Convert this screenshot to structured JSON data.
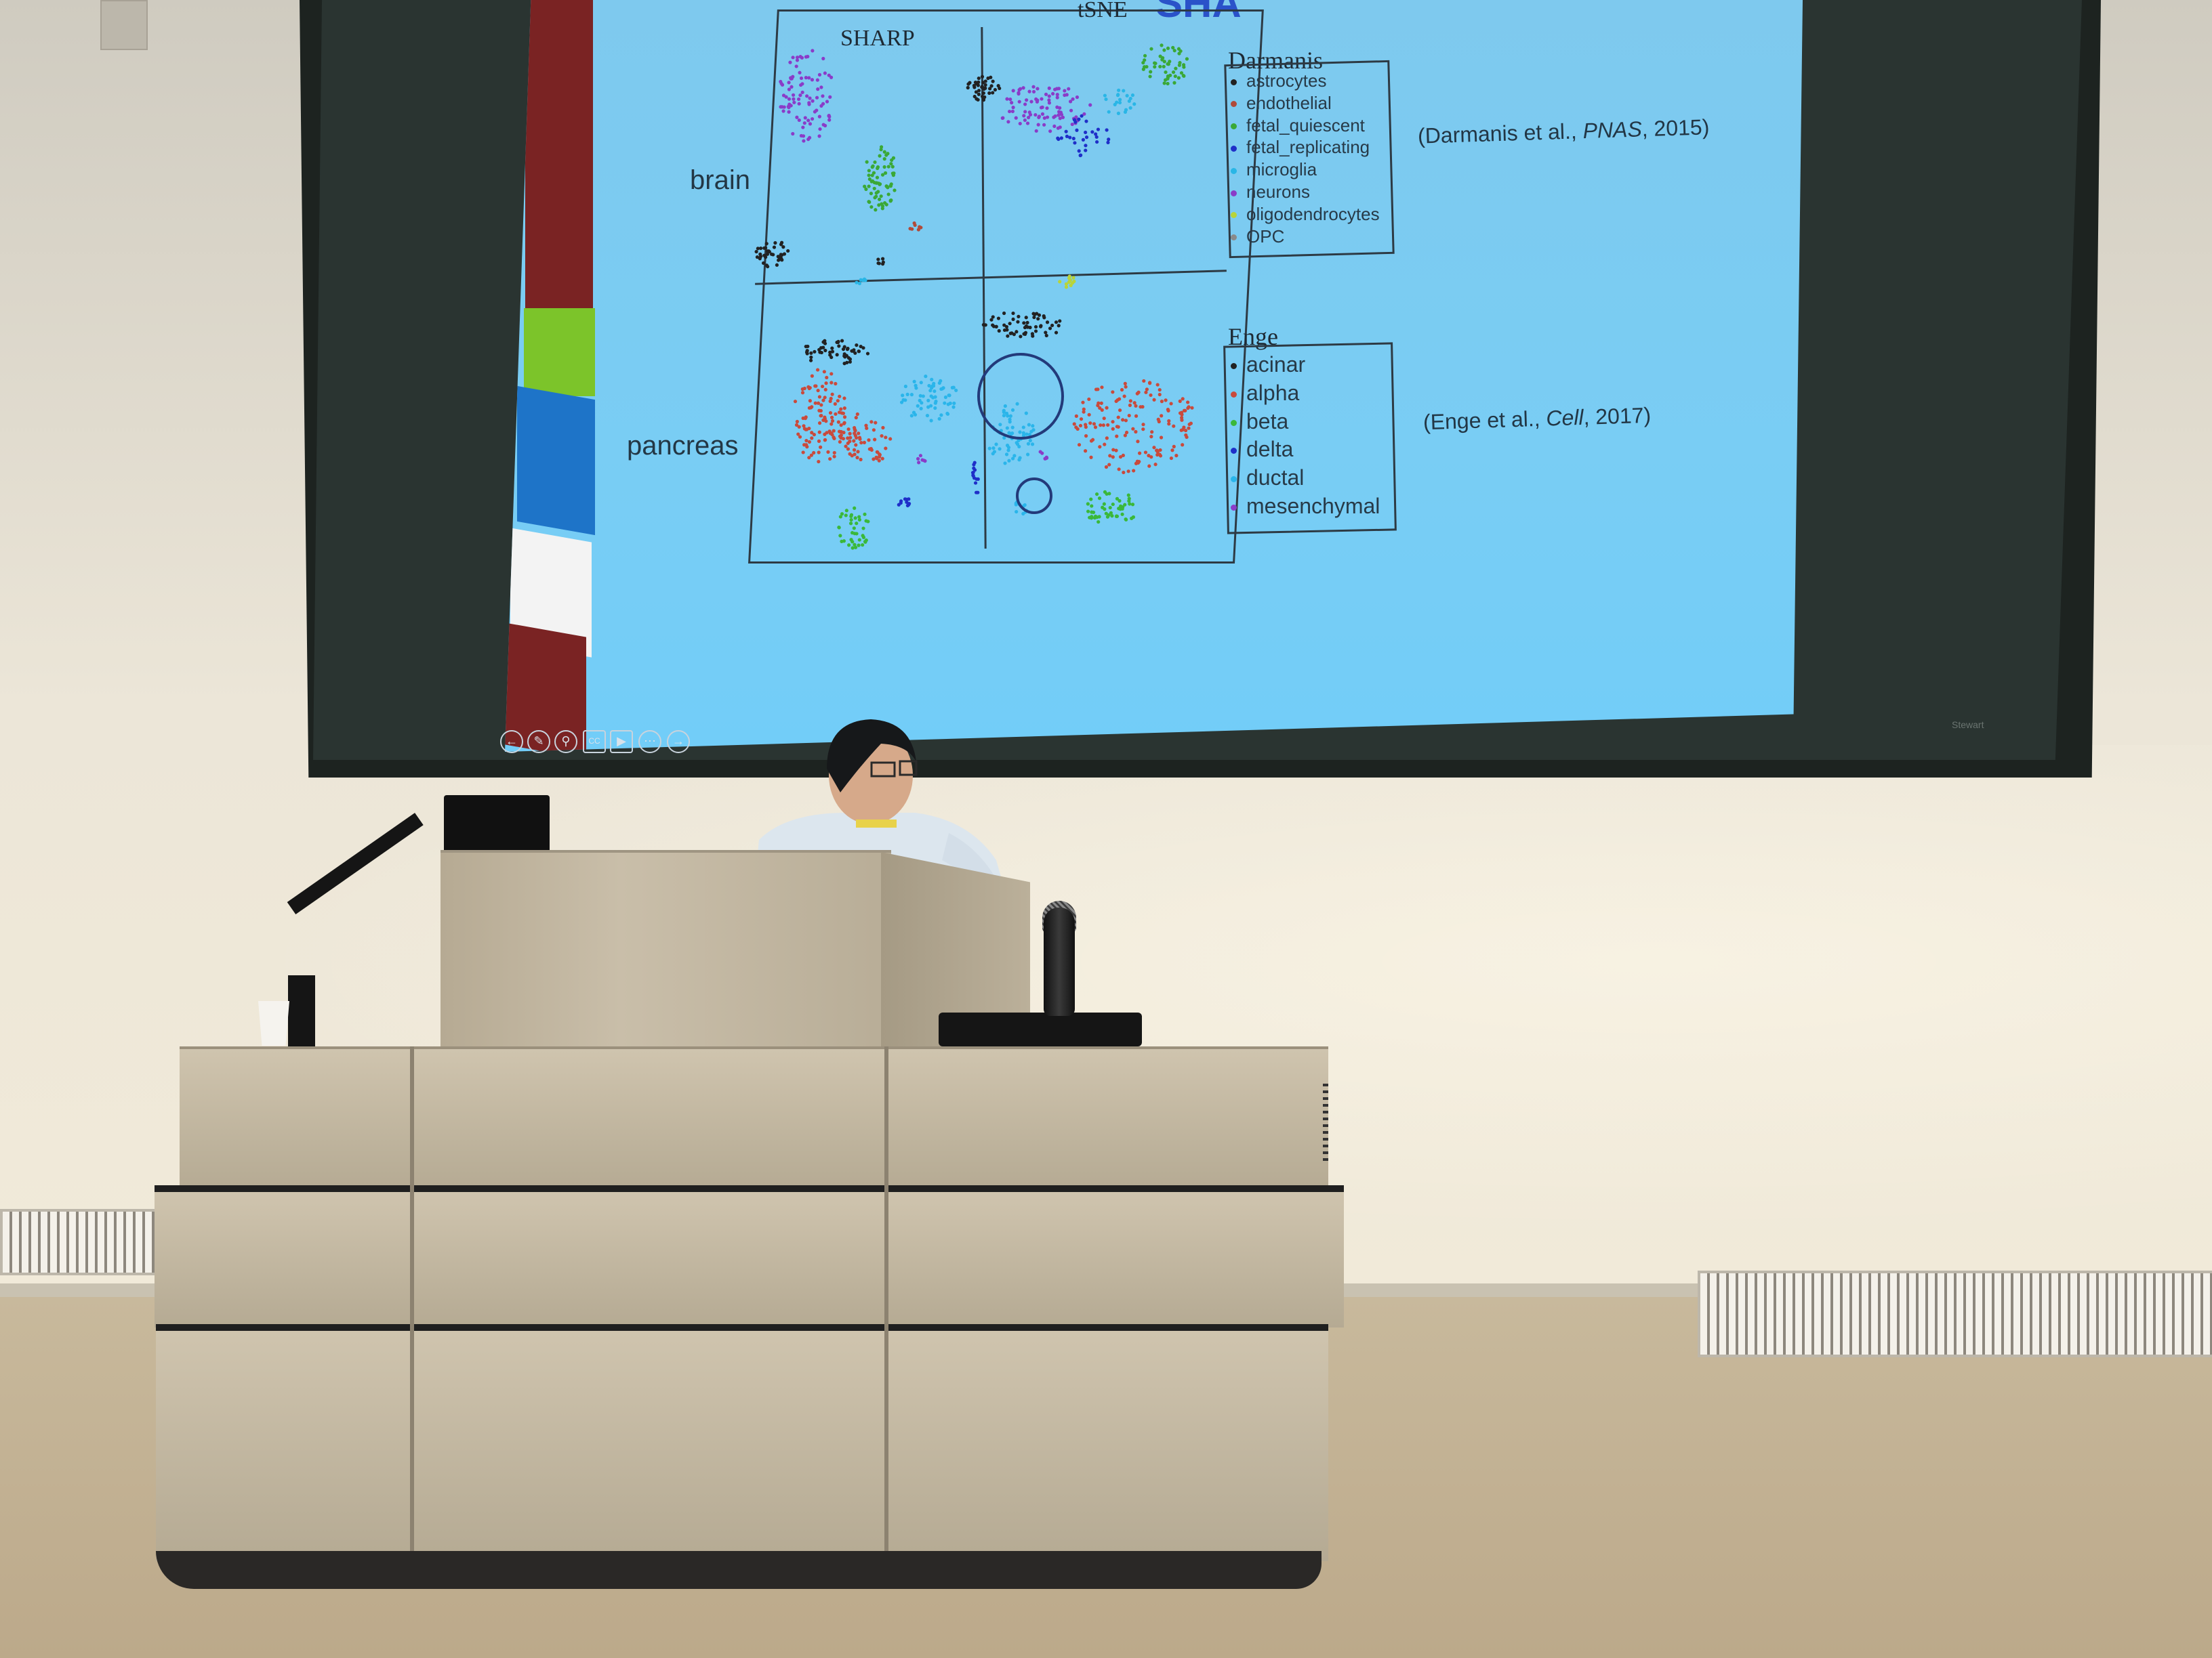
{
  "slide": {
    "title": "SHA",
    "column_titles": [
      "SHARP",
      "tSNE"
    ],
    "row_labels": [
      "brain",
      "pancreas"
    ],
    "legend_darmanis": {
      "title": "Darmanis",
      "items": [
        {
          "label": "astrocytes",
          "color": "#222222"
        },
        {
          "label": "endothelial",
          "color": "#b04a3a"
        },
        {
          "label": "fetal_quiescent",
          "color": "#3aa836"
        },
        {
          "label": "fetal_replicating",
          "color": "#1f2fc8"
        },
        {
          "label": "microglia",
          "color": "#29b6e6"
        },
        {
          "label": "neurons",
          "color": "#8a3cc8"
        },
        {
          "label": "oligodendrocytes",
          "color": "#b8d43a"
        },
        {
          "label": "OPC",
          "color": "#8a8a8a"
        }
      ]
    },
    "legend_enge": {
      "title": "Enge",
      "items": [
        {
          "label": "acinar",
          "color": "#222222"
        },
        {
          "label": "alpha",
          "color": "#c94a3c"
        },
        {
          "label": "beta",
          "color": "#3ab83a"
        },
        {
          "label": "delta",
          "color": "#1f2fc8"
        },
        {
          "label": "ductal",
          "color": "#2ab5ea"
        },
        {
          "label": "mesenchymal",
          "color": "#8a3cc8"
        }
      ]
    },
    "citations": {
      "darmanis": {
        "before": "(Darmanis et al., ",
        "journal": "PNAS",
        "after": ", 2015)"
      },
      "enge": {
        "before": "(Enge et al., ",
        "journal": "Cell",
        "after": ", 2017)"
      }
    },
    "stripe_colors": [
      "#7a2323",
      "#7cc42a",
      "#1e74c8",
      "#f3f3f3"
    ]
  },
  "screen": {
    "brand_label": "Stewart"
  },
  "controls": [
    "prev-icon",
    "pen-icon",
    "zoom-icon",
    "cc-icon",
    "camera-icon",
    "more-icon",
    "next-icon"
  ]
}
